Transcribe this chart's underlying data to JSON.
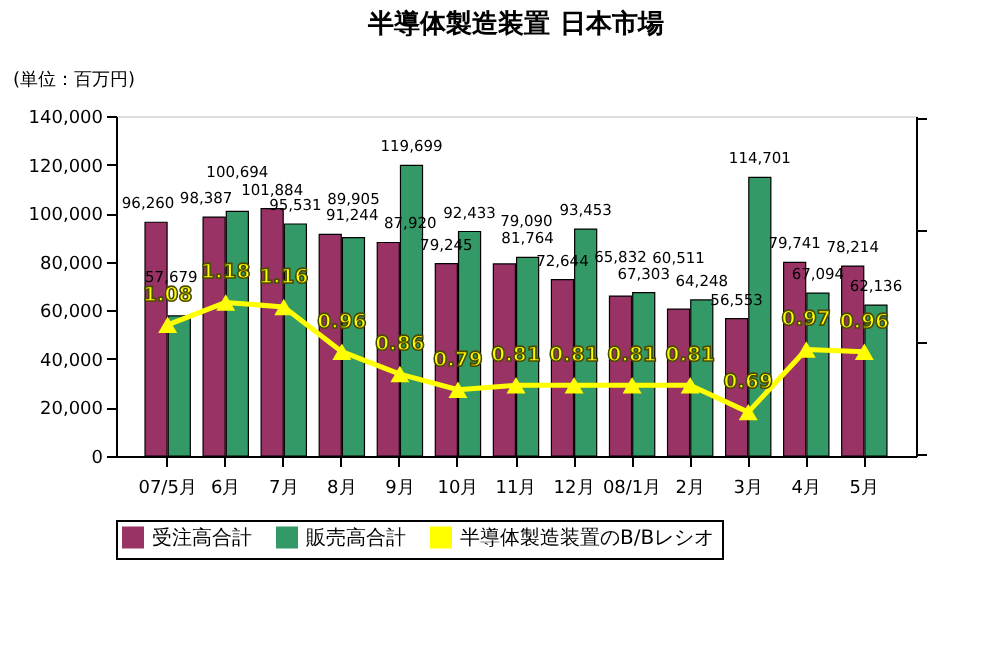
{
  "chart_data": {
    "type": "bar",
    "title": "半導体製造装置 日本市場",
    "ylabel": "(単位：百万円)",
    "categories": [
      "07/5月",
      "6月",
      "7月",
      "8月",
      "9月",
      "10月",
      "11月",
      "12月",
      "08/1月",
      "2月",
      "3月",
      "4月",
      "5月"
    ],
    "series": [
      {
        "name": "受注高合計",
        "color": "#993366",
        "values": [
          96260,
          98387,
          101884,
          91244,
          87920,
          79245,
          79090,
          72644,
          65832,
          60511,
          56553,
          79741,
          78214
        ],
        "value_labels": [
          "96,260",
          "98,387",
          "101,884",
          "91,244",
          "87,920",
          "79,245",
          "79,090",
          "72,644",
          "65,832",
          "60,511",
          "56,553",
          "79,741",
          "78,214"
        ]
      },
      {
        "name": "販売高合計",
        "color": "#339966",
        "values": [
          57679,
          100694,
          95531,
          89905,
          119699,
          92433,
          81764,
          93453,
          67303,
          64248,
          114701,
          67094,
          62136
        ],
        "value_labels": [
          "57,679",
          "100,694",
          "95,531",
          "89,905",
          "119,699",
          "92,433",
          "81,764",
          "93,453",
          "67,303",
          "64,248",
          "114,701",
          "67,094",
          "62,136"
        ]
      },
      {
        "name": "半導体製造装置のB/Bレシオ",
        "type": "line",
        "axis": "y2",
        "marker": "triangle",
        "line_style": "solid",
        "color": "#ffff00",
        "values": [
          1.08,
          1.18,
          1.16,
          0.96,
          0.86,
          0.79,
          0.81,
          0.81,
          0.81,
          0.81,
          0.69,
          0.97,
          0.96
        ],
        "value_labels": [
          "1.08",
          "1.18",
          "1.16",
          "0.96",
          "0.86",
          "0.79",
          "0.81",
          "0.81",
          "0.81",
          "0.81",
          "0.69",
          "0.97",
          "0.96"
        ]
      }
    ],
    "ylim": [
      0,
      140000
    ],
    "yticks": [
      0,
      {
        "value": 20000,
        "label": "20,000"
      },
      {
        "value": 40000,
        "label": "40,000"
      },
      {
        "value": 60000,
        "label": "60,000"
      },
      {
        "value": 80000,
        "label": "80,000"
      },
      {
        "value": 100000,
        "label": "100,000"
      },
      {
        "value": 120000,
        "label": "120,000"
      },
      {
        "value": 140000,
        "label": "140,000"
      }
    ],
    "tick_labels": "xy",
    "grid": false,
    "legend": "bottom"
  }
}
